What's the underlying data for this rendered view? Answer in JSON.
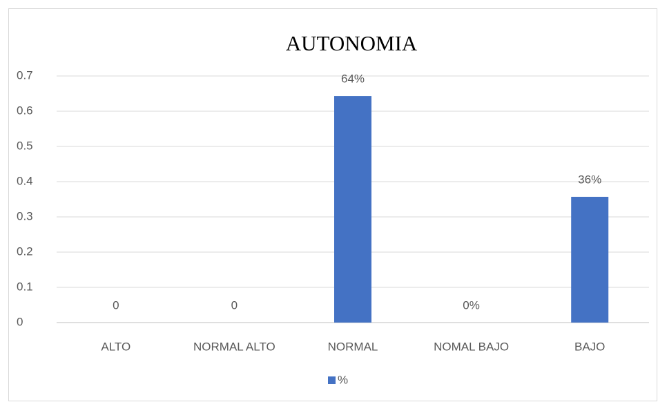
{
  "chart_data": {
    "type": "bar",
    "title": "AUTONOMIA",
    "categories": [
      "ALTO",
      "NORMAL ALTO",
      "NORMAL",
      "NOMAL BAJO",
      "BAJO"
    ],
    "series": [
      {
        "name": "%",
        "color": "#4472c4",
        "values": [
          0,
          0,
          0.643,
          0,
          0.357
        ],
        "value_labels": [
          "0",
          "0",
          "64%",
          "0%",
          "36%"
        ]
      }
    ],
    "ylim": [
      0,
      0.7
    ],
    "yticks": [
      0,
      0.1,
      0.2,
      0.3,
      0.4,
      0.5,
      0.6,
      0.7
    ],
    "grid": true,
    "legend": "bottom"
  }
}
